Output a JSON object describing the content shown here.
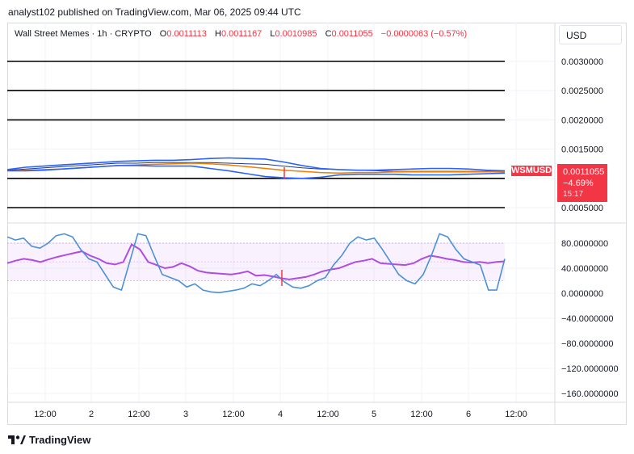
{
  "publisher_line": "analyst102 published on TradingView.com, Mar 06, 2025 09:44 UTC",
  "legend": {
    "symbol_name": "Wall Street Memes · 1h · CRYPTO",
    "open_label": "O",
    "open": "0.0011113",
    "high_label": "H",
    "high": "0.0011167",
    "low_label": "L",
    "low": "0.0010985",
    "close_label": "C",
    "close": "0.0011055",
    "change": "−0.0000063 (−0.57%)"
  },
  "currency": "USD",
  "price_badge": {
    "ticker": "WSMUSD",
    "price": "0.0011055",
    "change_pct": "−4.69%",
    "countdown": "15:17"
  },
  "brand": "TradingView",
  "colors": {
    "band_blue": "#2962ff",
    "ma_orange": "#f57c00",
    "rsi_purple": "#b04ce0",
    "stoch_blue": "#4a90d9",
    "down_red": "#f23645",
    "level_black": "#000000"
  },
  "chart_data": [
    {
      "type": "line",
      "title": "Wall Street Memes · 1h · CRYPTO",
      "ylim": [
        0.0003,
        0.0034
      ],
      "y_ticks": [
        "0.0030000",
        "0.0025000",
        "0.0020000",
        "0.0015000",
        "0.0010000",
        "0.0005000"
      ],
      "x_ticks": [
        "12:00",
        "2",
        "12:00",
        "3",
        "12:00",
        "4",
        "12:00",
        "5",
        "12:00",
        "6",
        "12:00"
      ],
      "horizontal_levels": [
        0.003,
        0.0025,
        0.002,
        0.001,
        0.0005
      ],
      "series": [
        {
          "values": [
            0.00114,
            0.00116,
            0.00118,
            0.0012,
            0.00122,
            0.00124,
            0.00126,
            0.00126,
            0.00127,
            0.00127,
            0.00127,
            0.00127,
            0.00126,
            0.00125,
            0.00124,
            0.00121,
            0.00118,
            0.00116,
            0.00115,
            0.00114,
            0.00113,
            0.00112,
            0.00112,
            0.00112,
            0.00112,
            0.00112,
            0.00112,
            0.00112
          ]
        },
        {
          "values": [
            0.00113,
            0.00114,
            0.00115,
            0.00116,
            0.00118,
            0.0012,
            0.00122,
            0.00123,
            0.00124,
            0.00125,
            0.00126,
            0.00125,
            0.00123,
            0.0012,
            0.00117,
            0.00114,
            0.00112,
            0.0011,
            0.00109,
            0.0011,
            0.0011,
            0.00111,
            0.00111,
            0.00111,
            0.00111,
            0.00111,
            0.00111,
            0.00111
          ]
        },
        {
          "values": [
            0.00115,
            0.00119,
            0.00121,
            0.00123,
            0.00125,
            0.00127,
            0.00129,
            0.0013,
            0.00131,
            0.00131,
            0.00132,
            0.00134,
            0.00135,
            0.00134,
            0.00133,
            0.00128,
            0.00122,
            0.00117,
            0.00115,
            0.00114,
            0.00114,
            0.00115,
            0.00116,
            0.00117,
            0.00117,
            0.00116,
            0.00114,
            0.00113
          ]
        },
        {
          "values": [
            0.00113,
            0.00113,
            0.00114,
            0.00116,
            0.00118,
            0.0012,
            0.00122,
            0.00122,
            0.00121,
            0.00121,
            0.00121,
            0.00117,
            0.00113,
            0.00108,
            0.00103,
            0.00101,
            0.001,
            0.00102,
            0.00106,
            0.00107,
            0.00107,
            0.00107,
            0.00106,
            0.00106,
            0.00106,
            0.00107,
            0.00108,
            0.00109
          ]
        }
      ]
    },
    {
      "type": "line",
      "ylim": [
        -175,
        100
      ],
      "y_ticks": [
        "80.0000000",
        "40.0000000",
        "0.0000000",
        "−40.0000000",
        "−80.0000000",
        "−120.0000000",
        "−160.0000000"
      ],
      "bands": {
        "upper": 80,
        "lower": 20
      },
      "series": [
        {
          "values": [
            48,
            52,
            55,
            53,
            50,
            54,
            58,
            61,
            64,
            67,
            60,
            55,
            48,
            46,
            50,
            78,
            70,
            50,
            45,
            40,
            42,
            48,
            43,
            36,
            33,
            32,
            31,
            30,
            32,
            35,
            28,
            29,
            27,
            24,
            22,
            24,
            26,
            30,
            35,
            38,
            40,
            45,
            50,
            52,
            55,
            48,
            47,
            46,
            45,
            48,
            55,
            60,
            58,
            55,
            53,
            50,
            49,
            50,
            48,
            50,
            51
          ]
        },
        {
          "values": [
            90,
            85,
            88,
            75,
            72,
            80,
            92,
            95,
            90,
            70,
            55,
            50,
            30,
            10,
            5,
            50,
            95,
            92,
            60,
            30,
            25,
            20,
            10,
            15,
            5,
            2,
            1,
            3,
            5,
            8,
            15,
            12,
            20,
            30,
            18,
            10,
            8,
            12,
            20,
            25,
            45,
            60,
            80,
            90,
            85,
            88,
            70,
            50,
            30,
            20,
            15,
            30,
            60,
            95,
            90,
            70,
            55,
            50,
            45,
            5,
            5,
            55
          ]
        }
      ]
    }
  ]
}
